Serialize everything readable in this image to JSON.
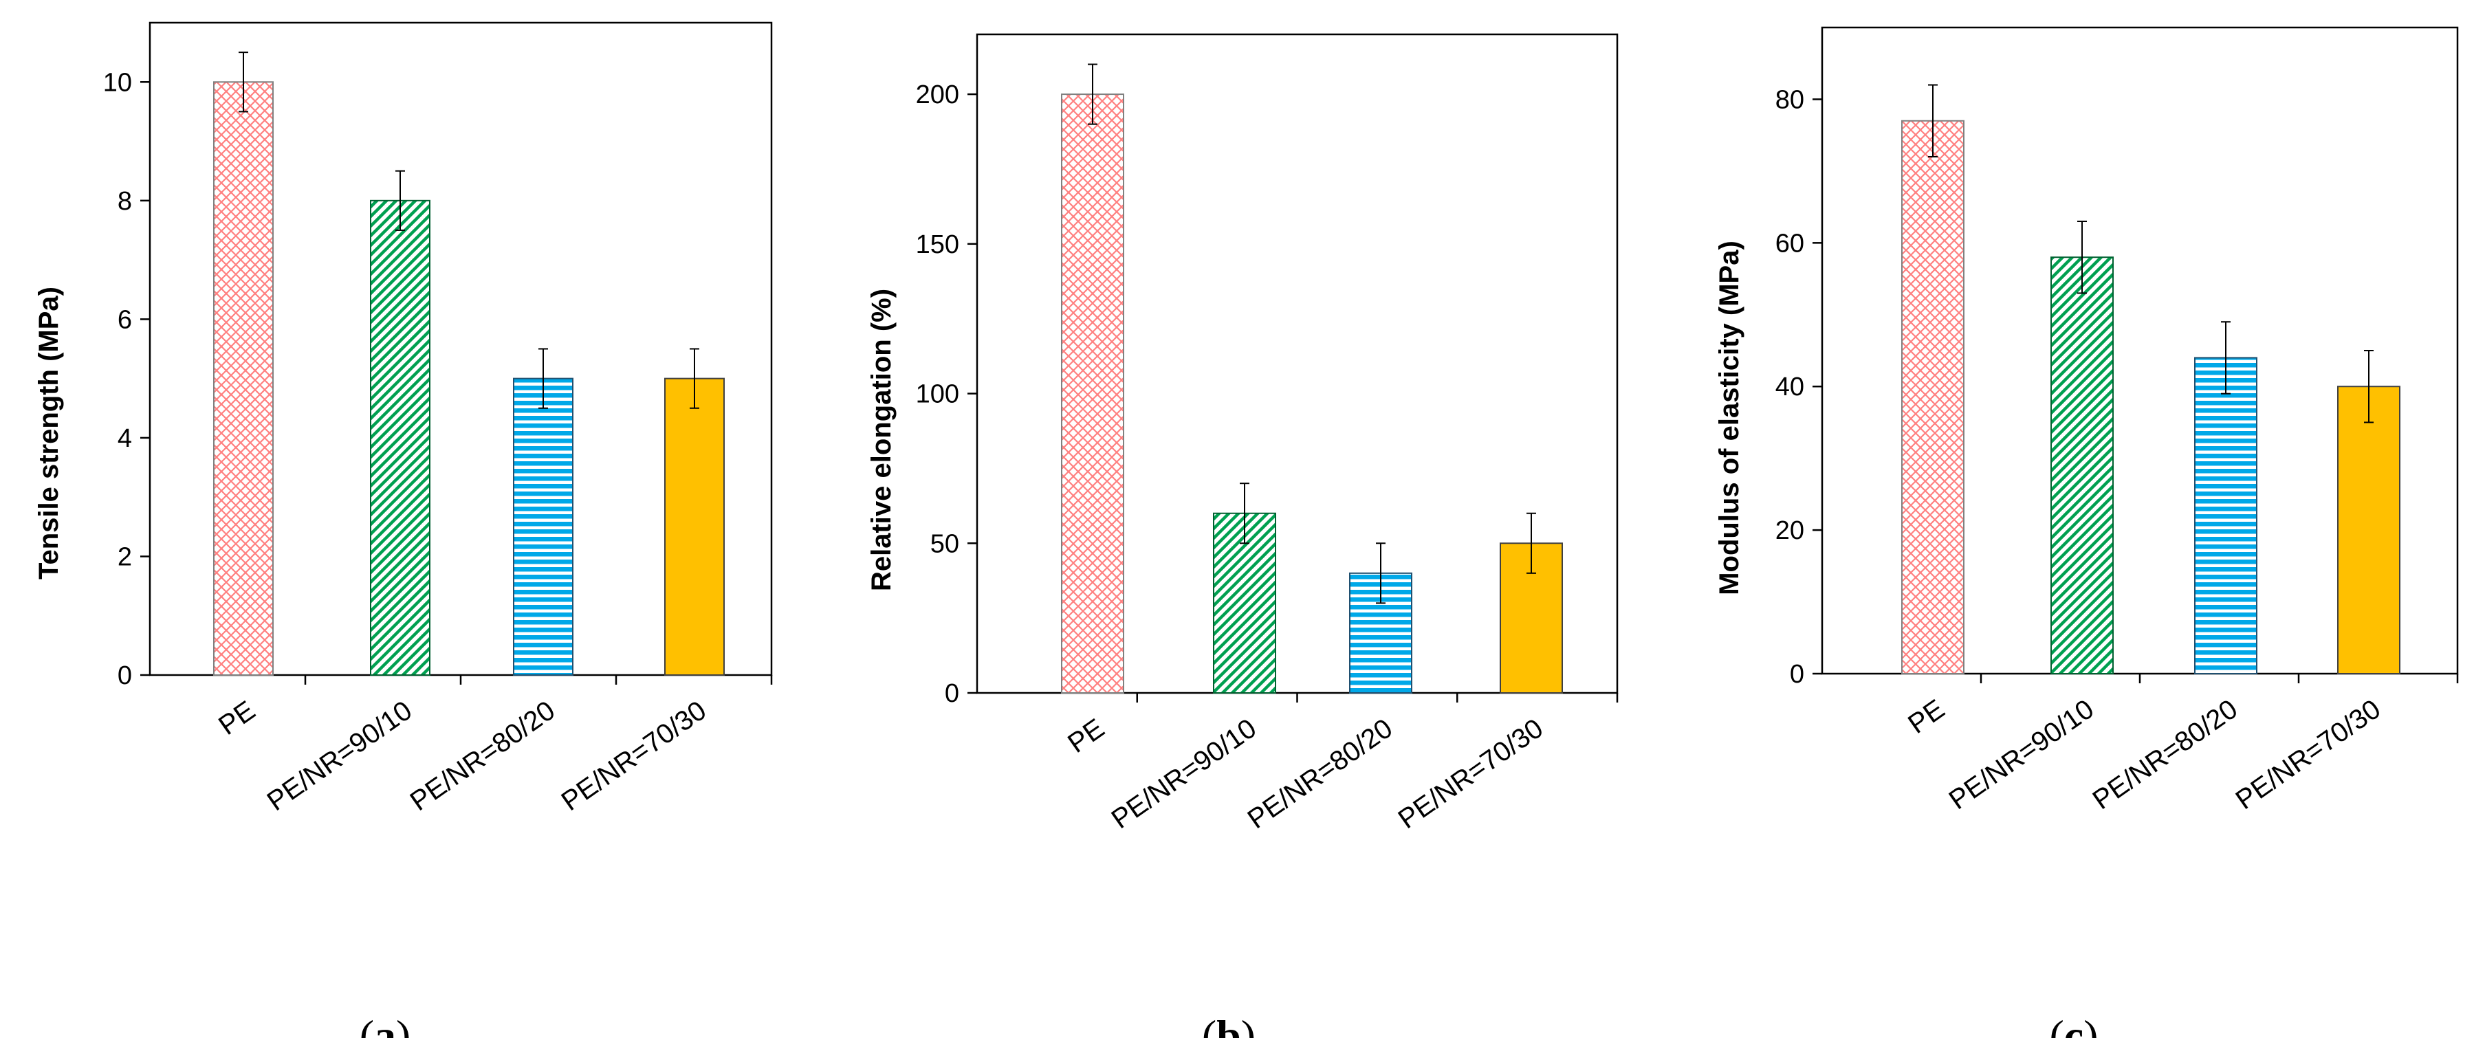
{
  "chart_data": [
    {
      "type": "bar",
      "panel": "a",
      "caption_open": "(",
      "caption_letter": "a",
      "caption_close": ")",
      "categories": [
        "PE",
        "PE/NR=90/10",
        "PE/NR=80/20",
        "PE/NR=70/30"
      ],
      "values": [
        10,
        8,
        5,
        5
      ],
      "errors": [
        0.5,
        0.5,
        0.5,
        0.5
      ],
      "ylabel": "Tensile strength (MPa)",
      "xlabel": "",
      "ylim": [
        0,
        11
      ],
      "yticks": [
        0,
        2,
        4,
        6,
        8,
        10
      ],
      "grid": false
    },
    {
      "type": "bar",
      "panel": "b",
      "caption_open": "(",
      "caption_letter": "b",
      "caption_close": ")",
      "categories": [
        "PE",
        "PE/NR=90/10",
        "PE/NR=80/20",
        "PE/NR=70/30"
      ],
      "values": [
        200,
        60,
        40,
        50
      ],
      "errors": [
        10,
        10,
        10,
        10
      ],
      "ylabel": "Relative elongation (%)",
      "xlabel": "",
      "ylim": [
        0,
        220
      ],
      "yticks": [
        0,
        50,
        100,
        150,
        200
      ],
      "grid": false
    },
    {
      "type": "bar",
      "panel": "c",
      "caption_open": "(",
      "caption_letter": "c",
      "caption_close": ")",
      "categories": [
        "PE",
        "PE/NR=90/10",
        "PE/NR=80/20",
        "PE/NR=70/30"
      ],
      "values": [
        77,
        58,
        44,
        40
      ],
      "errors": [
        5,
        5,
        5,
        5
      ],
      "ylabel": "Modulus of elasticity (MPa)",
      "xlabel": "",
      "ylim": [
        0,
        90
      ],
      "yticks": [
        0,
        20,
        40,
        60,
        80
      ],
      "grid": false
    }
  ],
  "series_styles": [
    {
      "name": "PE",
      "pattern": "crosshatch",
      "color": "#ff8080",
      "border": "#808080"
    },
    {
      "name": "PE/NR=90/10",
      "pattern": "diagonal",
      "color": "#00a050",
      "border": "#006030"
    },
    {
      "name": "PE/NR=80/20",
      "pattern": "horizontal",
      "color": "#00a8e8",
      "border": "#205070"
    },
    {
      "name": "PE/NR=70/30",
      "pattern": "solid",
      "color": "#ffc000",
      "border": "#404040"
    }
  ]
}
